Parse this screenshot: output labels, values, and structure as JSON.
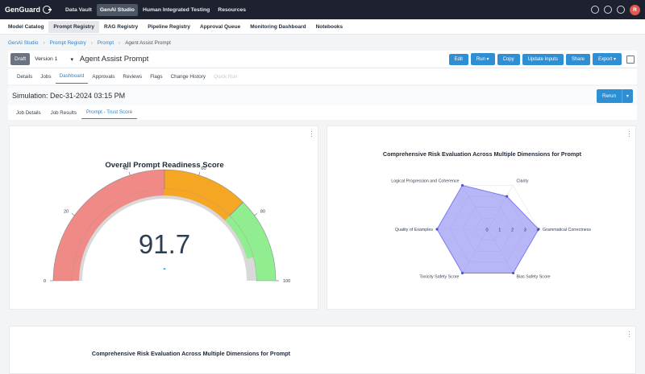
{
  "brand": {
    "name": "GenGuard"
  },
  "topnav": {
    "items": [
      "Data Vault",
      "GenAI Studio",
      "Human Integrated Testing",
      "Resources"
    ],
    "active": 1
  },
  "user": {
    "initial": "R"
  },
  "subnav": {
    "items": [
      "Model Catalog",
      "Prompt Registry",
      "RAG Registry",
      "Pipeline Registry",
      "Approval Queue",
      "Monitoring Dashboard",
      "Notebooks"
    ],
    "active": 1
  },
  "breadcrumb": [
    "GenAI Studio",
    "Prompt Registry",
    "Prompt",
    "Agent Assist Prompt"
  ],
  "header": {
    "status": "Draft",
    "version": "Version 1",
    "title": "Agent Assist Prompt",
    "actions": [
      "Edit",
      "Run",
      "Copy",
      "Update Inputs",
      "Share",
      "Export"
    ]
  },
  "tabs": {
    "items": [
      "Details",
      "Jobs",
      "Dashboard",
      "Approvals",
      "Reviews",
      "Flags",
      "Change History",
      "Quick Run"
    ],
    "active": 2,
    "disabled": 7
  },
  "simulation": {
    "title": "Simulation: Dec-31-2024 03:15 PM",
    "rerun_label": "Rerun"
  },
  "subtabs": {
    "items": [
      "Job Details",
      "Job Results",
      "Prompt - Trust Score"
    ],
    "active": 2
  },
  "gauge": {
    "title": "Overall Prompt Readiness Score",
    "value": 91.7,
    "value_text": "91.7",
    "dash": "-",
    "min": 0,
    "max": 100,
    "ticks": [
      "0",
      "20",
      "40",
      "60",
      "80",
      "100"
    ],
    "bands": [
      {
        "from": 0,
        "to": 50,
        "color": "#ef8a87"
      },
      {
        "from": 50,
        "to": 75,
        "color": "#f5a623"
      },
      {
        "from": 75,
        "to": 100,
        "color": "#90ee90"
      }
    ],
    "colors": {
      "track": "#d9d9d9",
      "inner": "#ef8a87"
    }
  },
  "chart_data": [
    {
      "type": "radar",
      "title": "Comprehensive Risk Evaluation Across Multiple Dimensions for Prompt",
      "categories": [
        "Clarity",
        "Grammatical Correctness",
        "Bias Safety Score",
        "Toxicity Safety Score",
        "Quality of Examples",
        "Logical Progression and Coherence"
      ],
      "values": [
        3,
        4,
        4,
        4,
        4,
        4
      ],
      "range": [
        0,
        4
      ],
      "ticks": [
        "0",
        "1",
        "2",
        "3",
        "4"
      ],
      "color": "#7b7bf2"
    }
  ],
  "bottom_card": {
    "title": "Comprehensive Risk Evaluation Across Multiple Dimensions for Prompt"
  }
}
